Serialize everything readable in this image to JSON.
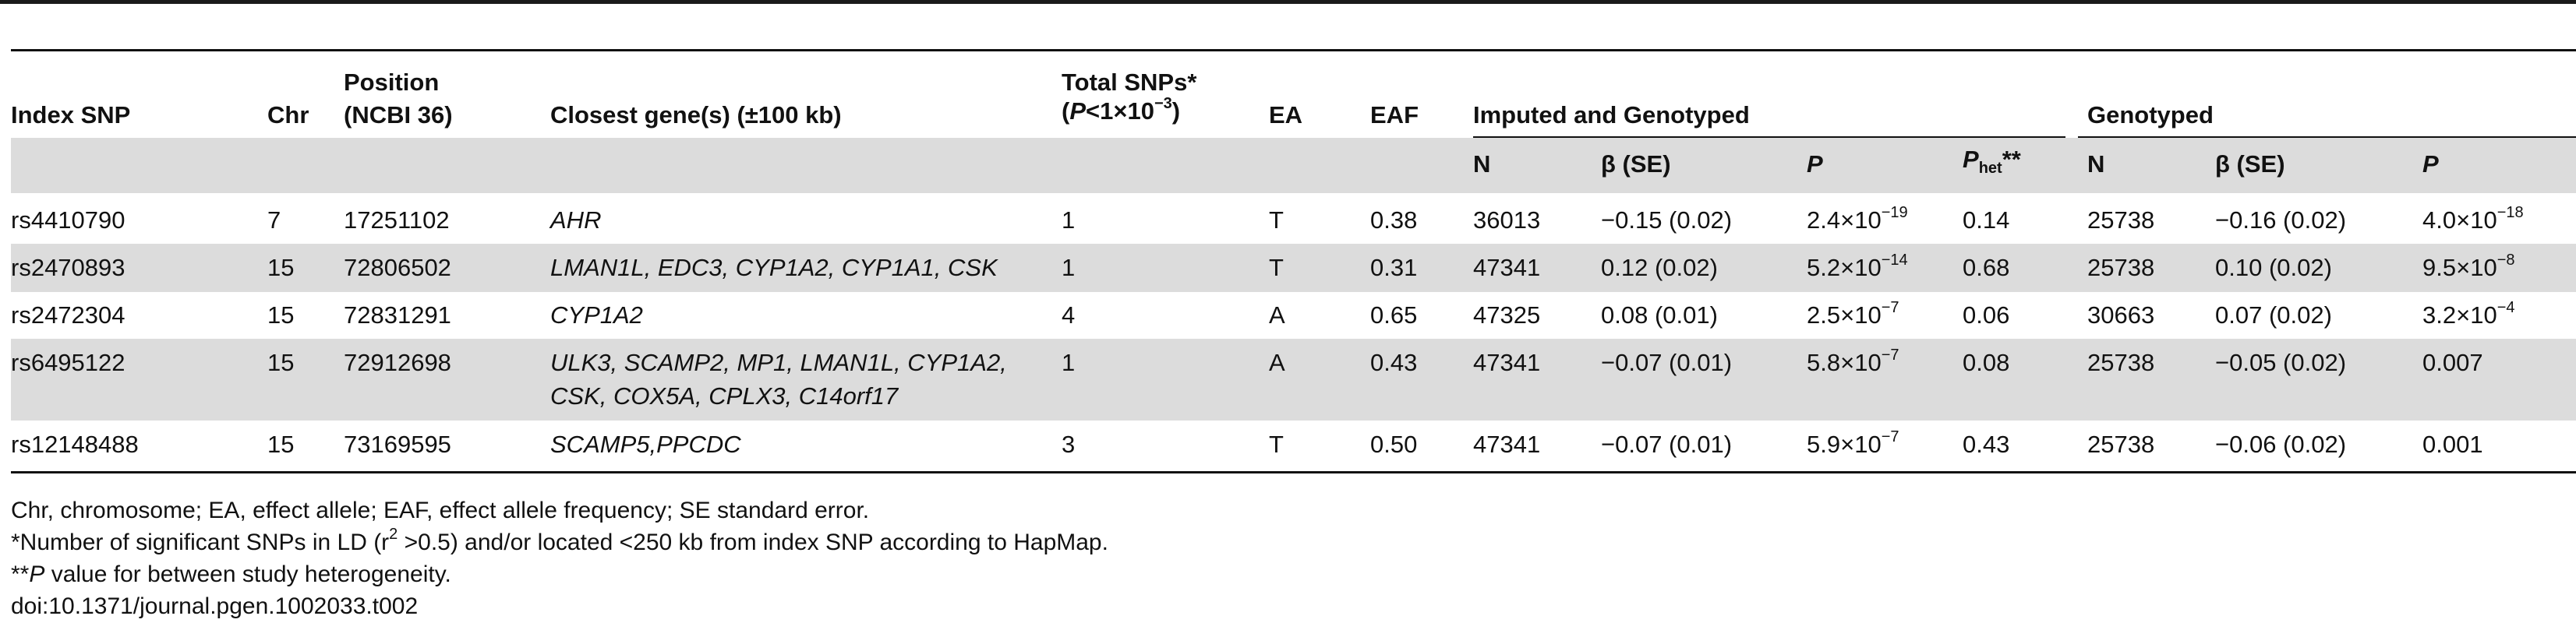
{
  "table": {
    "headers": {
      "index_snp": "Index SNP",
      "chr": "Chr",
      "position_line1": "Position",
      "position_line2": "(NCBI 36)",
      "closest_gene": "Closest gene(s) (±100 kb)",
      "total_snps_line1": "Total SNPs*",
      "total_snps_line2_prefix": "(",
      "total_snps_line2_p": "P",
      "total_snps_line2_mid": "<1×10",
      "total_snps_line2_exp": "−3",
      "total_snps_line2_suffix": ")",
      "ea": "EA",
      "eaf": "EAF",
      "group_imputed": "Imputed and Genotyped",
      "group_genotyped": "Genotyped",
      "n": "N",
      "beta_se": "β (SE)",
      "p": "P",
      "phet_p": "P",
      "phet_sub": "het",
      "phet_stars": "**"
    },
    "rows": [
      {
        "snp": "rs4410790",
        "chr": "7",
        "position": "17251102",
        "genes": [
          "AHR"
        ],
        "total": "1",
        "ea": "T",
        "eaf": "0.38",
        "ig_n": "36013",
        "ig_beta": "−0.15 (0.02)",
        "ig_p_base": "2.4×10",
        "ig_p_exp": "−19",
        "phet": "0.14",
        "g_n": "25738",
        "g_beta": "−0.16 (0.02)",
        "g_p_base": "4.0×10",
        "g_p_exp": "−18"
      },
      {
        "snp": "rs2470893",
        "chr": "15",
        "position": "72806502",
        "genes": [
          "LMAN1L, EDC3, CYP1A2, CYP1A1, CSK"
        ],
        "total": "1",
        "ea": "T",
        "eaf": "0.31",
        "ig_n": "47341",
        "ig_beta": "0.12 (0.02)",
        "ig_p_base": "5.2×10",
        "ig_p_exp": "−14",
        "phet": "0.68",
        "g_n": "25738",
        "g_beta": "0.10 (0.02)",
        "g_p_base": "9.5×10",
        "g_p_exp": "−8"
      },
      {
        "snp": "rs2472304",
        "chr": "15",
        "position": "72831291",
        "genes": [
          "CYP1A2"
        ],
        "total": "4",
        "ea": "A",
        "eaf": "0.65",
        "ig_n": "47325",
        "ig_beta": "0.08 (0.01)",
        "ig_p_base": "2.5×10",
        "ig_p_exp": "−7",
        "phet": "0.06",
        "g_n": "30663",
        "g_beta": "0.07 (0.02)",
        "g_p_base": "3.2×10",
        "g_p_exp": "−4"
      },
      {
        "snp": "rs6495122",
        "chr": "15",
        "position": "72912698",
        "genes": [
          "ULK3, SCAMP2, MP1, LMAN1L, CYP1A2,",
          "CSK, COX5A, CPLX3, C14orf17"
        ],
        "total": "1",
        "ea": "A",
        "eaf": "0.43",
        "ig_n": "47341",
        "ig_beta": "−0.07 (0.01)",
        "ig_p_base": "5.8×10",
        "ig_p_exp": "−7",
        "phet": "0.08",
        "g_n": "25738",
        "g_beta": "−0.05 (0.02)",
        "g_p_base": "0.007",
        "g_p_exp": ""
      },
      {
        "snp": "rs12148488",
        "chr": "15",
        "position": "73169595",
        "genes": [
          "SCAMP5,PPCDC"
        ],
        "total": "3",
        "ea": "T",
        "eaf": "0.50",
        "ig_n": "47341",
        "ig_beta": "−0.07 (0.01)",
        "ig_p_base": "5.9×10",
        "ig_p_exp": "−7",
        "phet": "0.43",
        "g_n": "25738",
        "g_beta": "−0.06 (0.02)",
        "g_p_base": "0.001",
        "g_p_exp": ""
      }
    ]
  },
  "footnotes": {
    "abbrev": "Chr, chromosome; EA, effect allele; EAF, effect allele frequency; SE standard error.",
    "note1_a": "*Number of significant SNPs in LD (r",
    "note1_sup": "2",
    "note1_b": " >0.5) and/or located <250 kb from index SNP according to HapMap.",
    "note2_stars": "**",
    "note2_p": "P",
    "note2_rest": " value for between study heterogeneity.",
    "doi": "doi:10.1371/journal.pgen.1002033.t002"
  }
}
